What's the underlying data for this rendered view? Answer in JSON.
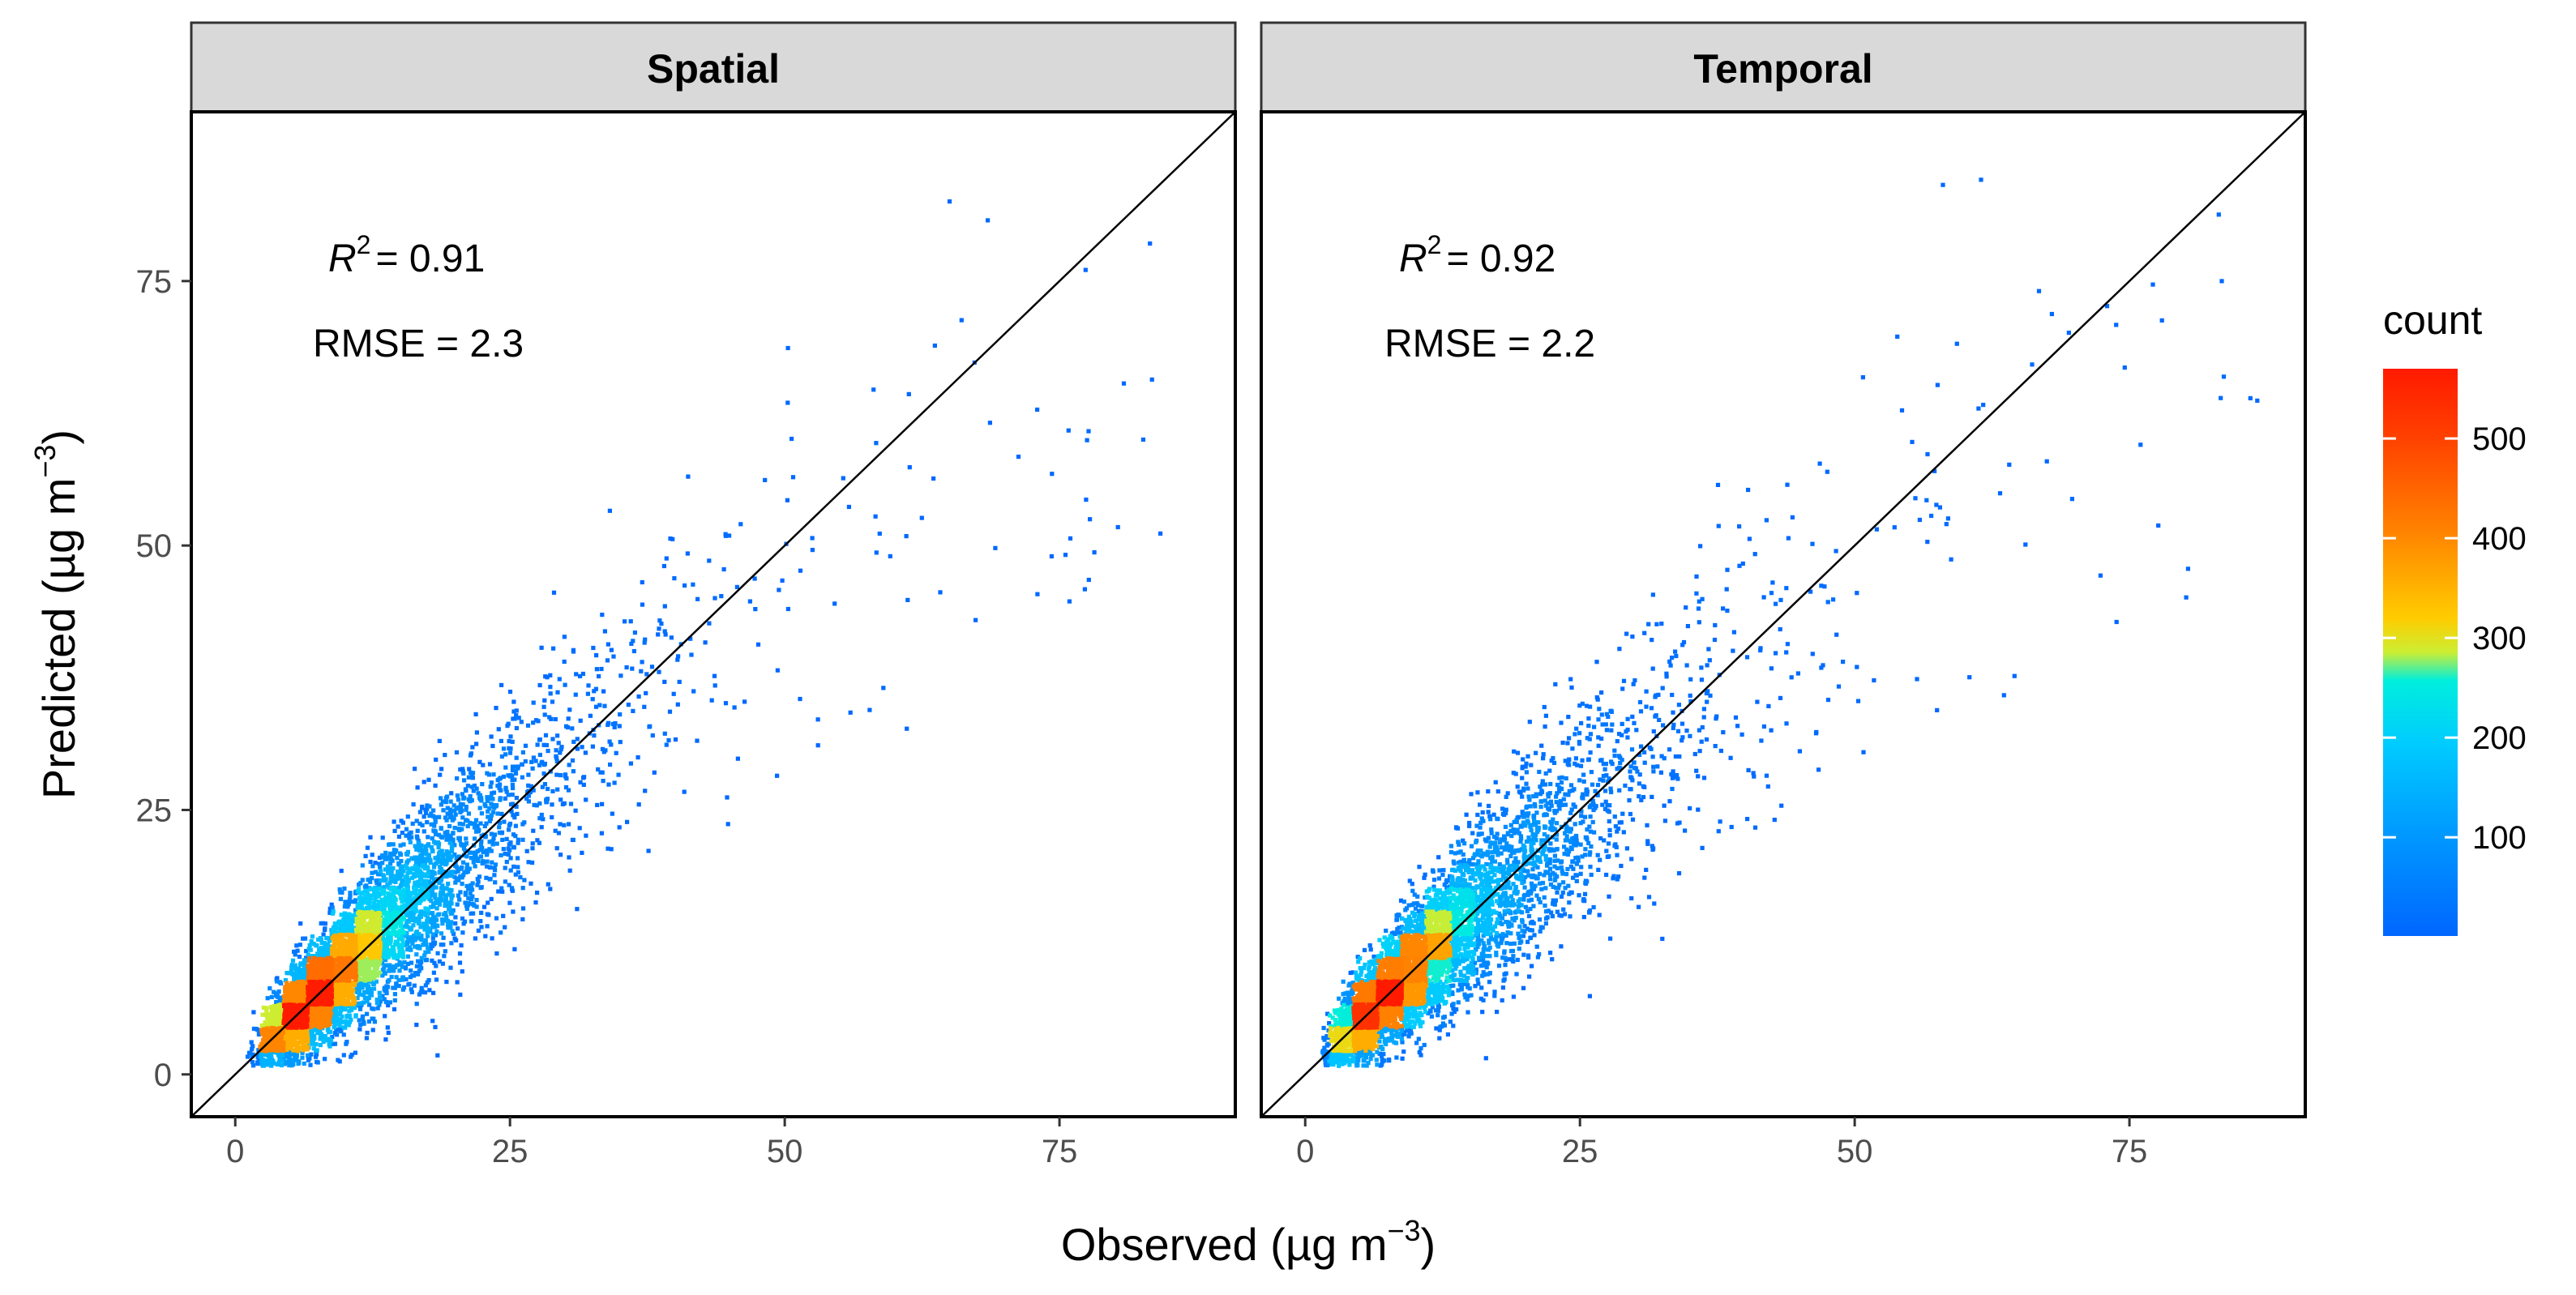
{
  "chart_data": {
    "type": "scatter",
    "subtype": "density-hexbin",
    "xlabel": "Observed",
    "ylabel": "Predicted",
    "unit_prefix": "µg m",
    "unit_exp": "−3",
    "xlim": [
      -4,
      91
    ],
    "ylim": [
      -4,
      91
    ],
    "xticks": [
      0,
      25,
      50,
      75
    ],
    "yticks": [
      0,
      25,
      50,
      75
    ],
    "xtick_labels": [
      "0",
      "25",
      "50",
      "75"
    ],
    "ytick_labels": [
      "0",
      "25",
      "50",
      "75"
    ],
    "reference_line": "1:1 (y = x)",
    "legend": {
      "title": "count",
      "labels": [
        "100",
        "200",
        "300",
        "400",
        "500"
      ],
      "values": [
        100,
        200,
        300,
        400,
        500
      ],
      "range": [
        1,
        570
      ],
      "colors": [
        "#0066ff",
        "#00b0ff",
        "#00e8e8",
        "#ffcc00",
        "#ff7000",
        "#ff1a00"
      ]
    },
    "panels": [
      {
        "title": "Spatial",
        "r2_symbol": "R",
        "r2_exp": "2",
        "r2_value": "= 0.91",
        "rmse_label": "RMSE = 2.3",
        "r2": 0.91,
        "rmse": 2.3,
        "seed": 11
      },
      {
        "title": "Temporal",
        "r2_symbol": "R",
        "r2_exp": "2",
        "r2_value": "= 0.92",
        "rmse_label": "RMSE = 2.2",
        "r2": 0.92,
        "rmse": 2.2,
        "seed": 23
      }
    ]
  }
}
